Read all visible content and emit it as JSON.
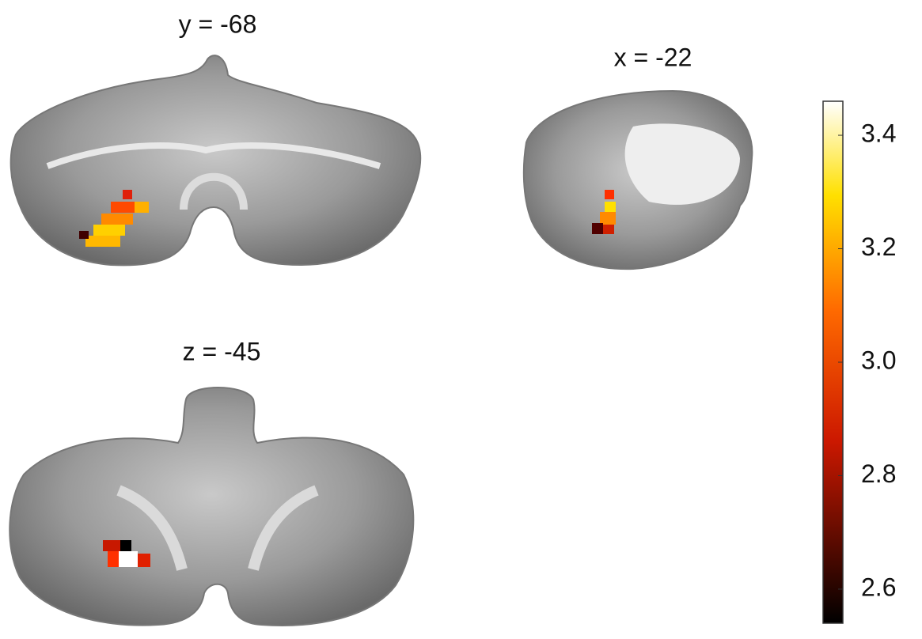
{
  "panels": [
    {
      "label": "y = -68"
    },
    {
      "label": "x = -22"
    },
    {
      "label": "z = -45"
    }
  ],
  "colorbar": {
    "lim": [
      2.54,
      3.46
    ],
    "ticks": [
      3.4,
      3.2,
      {
        "value": 3,
        "label": "3.0"
      },
      2.8,
      2.6
    ]
  }
}
